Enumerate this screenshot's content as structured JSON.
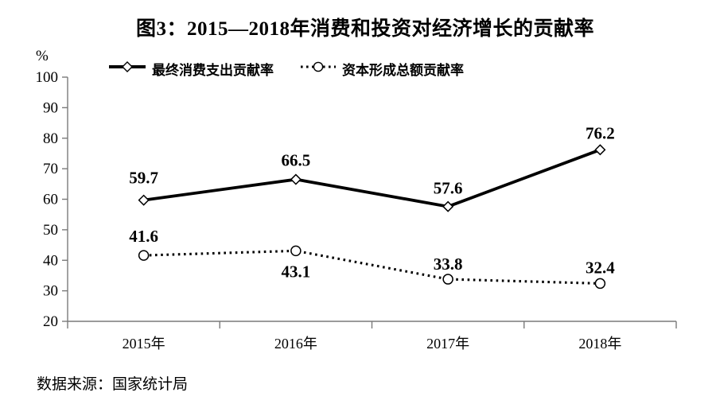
{
  "title": "图3：2015—2018年消费和投资对经济增长的贡献率",
  "source_note": "数据来源：国家统计局",
  "unit_label": "%",
  "colors": {
    "series": "#000000",
    "axis": "#7a7a7a",
    "text": "#000000",
    "background": "#ffffff"
  },
  "chart_data": {
    "type": "line",
    "title": "图3：2015—2018年消费和投资对经济增长的贡献率",
    "xlabel": "",
    "ylabel": "%",
    "categories": [
      "2015年",
      "2016年",
      "2017年",
      "2018年"
    ],
    "series": [
      {
        "name": "最终消费支出贡献率",
        "values": [
          59.7,
          66.5,
          57.6,
          76.2
        ],
        "line": "solid",
        "marker": "diamond",
        "color": "#000000",
        "label_dy": [
          -21,
          -17,
          -16,
          -14
        ]
      },
      {
        "name": "资本形成总额贡献率",
        "values": [
          41.6,
          43.1,
          33.8,
          32.4
        ],
        "line": "dotted",
        "marker": "circle",
        "color": "#000000",
        "label_dy": [
          -17,
          33,
          -12,
          -13
        ]
      }
    ],
    "ylim": [
      20,
      100
    ],
    "y_ticks": [
      20,
      30,
      40,
      50,
      60,
      70,
      80,
      90,
      100
    ],
    "grid": false,
    "legend_position": "top",
    "data_labels": true
  }
}
